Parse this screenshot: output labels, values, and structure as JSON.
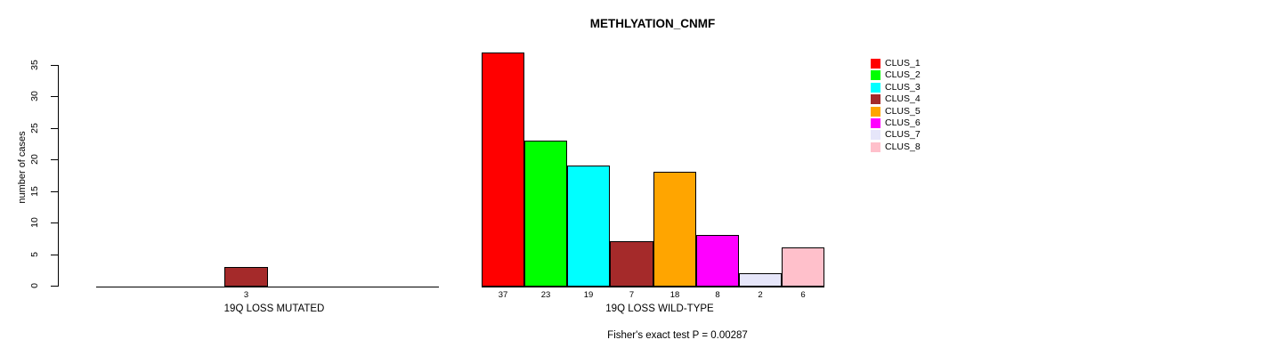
{
  "page": {
    "background": "#FFFFFF",
    "text_color": "#000000"
  },
  "chart_data": {
    "type": "bar",
    "title": "METHLYATION_CNMF",
    "ylabel": "number of cases",
    "xlabel": "",
    "ylim": [
      0,
      35
    ],
    "yticks": [
      0,
      5,
      10,
      15,
      20,
      25,
      30,
      35
    ],
    "grid": false,
    "legend_position": "right",
    "axis_color": "#000000",
    "bar_border_color": "#000000",
    "clusters": [
      {
        "name": "CLUS_1",
        "color": "#FF0000"
      },
      {
        "name": "CLUS_2",
        "color": "#00FF00"
      },
      {
        "name": "CLUS_3",
        "color": "#00FFFF"
      },
      {
        "name": "CLUS_4",
        "color": "#A52A2A"
      },
      {
        "name": "CLUS_5",
        "color": "#FFA500"
      },
      {
        "name": "CLUS_6",
        "color": "#FF00FF"
      },
      {
        "name": "CLUS_7",
        "color": "#E6E6FA"
      },
      {
        "name": "CLUS_8",
        "color": "#FFC0CB"
      }
    ],
    "groups": [
      {
        "label": "19Q LOSS MUTATED",
        "values": [
          null,
          null,
          null,
          3,
          null,
          null,
          null,
          null
        ]
      },
      {
        "label": "19Q LOSS WILD-TYPE",
        "values": [
          37,
          23,
          19,
          7,
          18,
          8,
          2,
          6
        ]
      }
    ],
    "footnote": "Fisher's exact test P = 0.00287"
  }
}
